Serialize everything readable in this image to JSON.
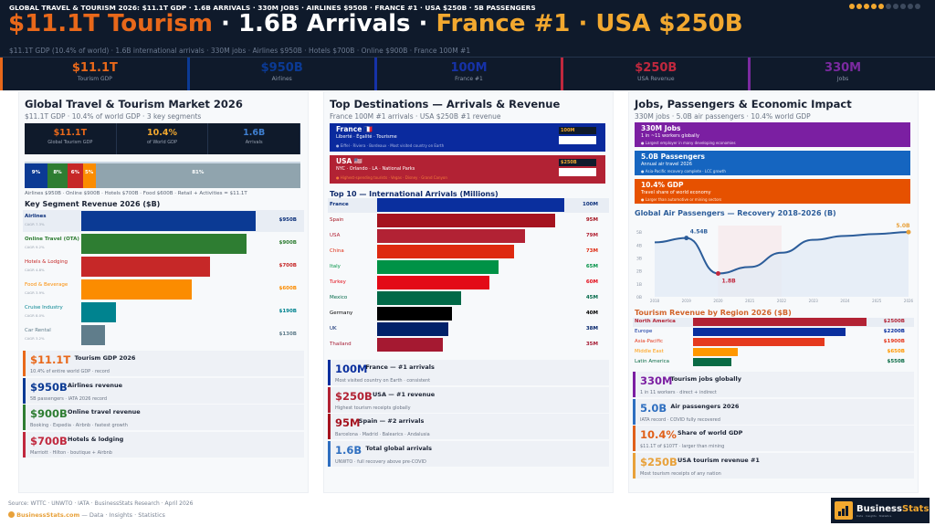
{
  "header": {
    "ticker": "GLOBAL TRAVEL & TOURISM 2026: $11.1T GDP · 1.6B ARRIVALS · 330M JOBS · AIRLINES $950B · FRANCE #1 · USA $250B · 5B PASSENGERS",
    "headline_1": "$11.1T Tourism",
    "headline_2": " · 1.6B Arrivals · ",
    "headline_3": "France #1 · USA $250B",
    "subtitle": "$11.1T GDP (10.4% of world) · 1.6B international arrivals · 330M jobs · Airlines $950B · Hotels $700B · Online $900B · France 100M #1",
    "page_dots": {
      "total": 10,
      "active": 5
    }
  },
  "kpis": [
    {
      "value": "$11.1T",
      "label": "Tourism GDP",
      "color": "#e8681a"
    },
    {
      "value": "$950B",
      "label": "Airlines",
      "color": "#0b3a94"
    },
    {
      "value": "100M",
      "label": "France #1",
      "color": "#1632a8"
    },
    {
      "value": "$250B",
      "label": "USA Revenue",
      "color": "#c0283e"
    },
    {
      "value": "330M",
      "label": "Jobs",
      "color": "#7b2aa0"
    }
  ],
  "left": {
    "title": "Global Travel & Tourism Market 2026",
    "subtitle": "$11.1T GDP · 10.4% of world GDP · 3 key segments",
    "stats": [
      {
        "value": "$11.1T",
        "label": "Global Tourism GDP",
        "color": "#e8681a"
      },
      {
        "value": "10.4%",
        "label": "of World GDP",
        "color": "#f2a82f"
      },
      {
        "value": "1.6B",
        "label": "Arrivals",
        "color": "#3f7fd0"
      }
    ],
    "share_bar": [
      {
        "label": "9%",
        "value": 9,
        "color": "#0b3a94"
      },
      {
        "label": "8%",
        "value": 8,
        "color": "#2e7d32"
      },
      {
        "label": "6%",
        "value": 6,
        "color": "#c62828"
      },
      {
        "label": "5%",
        "value": 5,
        "color": "#fb8c00"
      },
      {
        "label": "81%",
        "value": 81,
        "color": "#90a4ae"
      }
    ],
    "share_caption": "Airlines $950B · Online $900B · Hotels $700B · Food $600B · Retail + Activities = $11.1T",
    "segments_title": "Key Segment Revenue 2026 ($B)",
    "segments": [
      {
        "name": "Airlines",
        "cagr": "CAGR 7.3%",
        "value": 950,
        "value_label": "$950B",
        "color": "#0b3a94"
      },
      {
        "name": "Online Travel (OTA)",
        "cagr": "CAGR 9.2%",
        "value": 900,
        "value_label": "$900B",
        "color": "#2e7d32"
      },
      {
        "name": "Hotels & Lodging",
        "cagr": "CAGR 4.8%",
        "value": 700,
        "value_label": "$700B",
        "color": "#c62828"
      },
      {
        "name": "Food & Beverage",
        "cagr": "CAGR 3.9%",
        "value": 600,
        "value_label": "$600B",
        "color": "#fb8c00"
      },
      {
        "name": "Cruise Industry",
        "cagr": "CAGR 8.0%",
        "value": 190,
        "value_label": "$190B",
        "color": "#00838f"
      },
      {
        "name": "Car Rental",
        "cagr": "CAGR 3.2%",
        "value": 130,
        "value_label": "$130B",
        "color": "#607d8b"
      }
    ],
    "cards": [
      {
        "value": "$11.1T",
        "title": "Tourism GDP 2026",
        "sub": "10.4% of entire world GDP · record",
        "color": "#e8681a"
      },
      {
        "value": "$950B",
        "title": "Airlines revenue",
        "sub": "5B passengers · IATA 2026 record",
        "color": "#0b3a94"
      },
      {
        "value": "$900B",
        "title": "Online travel revenue",
        "sub": "Booking · Expedia · Airbnb · fastest growth",
        "color": "#2e7d32"
      },
      {
        "value": "$700B",
        "title": "Hotels & lodging",
        "sub": "Marriott · Hilton · boutique + Airbnb",
        "color": "#c0283e"
      }
    ]
  },
  "middle": {
    "title": "Top Destinations — Arrivals & Revenue",
    "subtitle": "France 100M #1 arrivals · USA $250B #1 revenue",
    "highlights": [
      {
        "name": "France 🇫🇷",
        "tagline": "Liberté · Égalité · Tourisme",
        "bullet": "● Eiffel · Riviera · Bordeaux · Most visited country on Earth",
        "badge": "100M",
        "color": "#0a2a9e",
        "bullet_color": "#c9d2f0"
      },
      {
        "name": "USA 🇺🇸",
        "tagline": "NYC · Orlando · LA · National Parks",
        "bullet": "● Highest-spending tourists · Vegas · Disney · Grand Canyon",
        "badge": "$250B",
        "color": "#b22234",
        "bullet_color": "#ff8a3a"
      }
    ],
    "arrivals_title": "Top 10 — International Arrivals (Millions)",
    "arrivals": [
      {
        "country": "France",
        "value": 100,
        "label": "100M",
        "color": "#0a2f9e"
      },
      {
        "country": "Spain",
        "value": 95,
        "label": "95M",
        "color": "#a5131f"
      },
      {
        "country": "USA",
        "value": 79,
        "label": "79M",
        "color": "#b22234"
      },
      {
        "country": "China",
        "value": 73,
        "label": "73M",
        "color": "#de2910"
      },
      {
        "country": "Italy",
        "value": 65,
        "label": "65M",
        "color": "#009246"
      },
      {
        "country": "Turkey",
        "value": 60,
        "label": "60M",
        "color": "#e30a17"
      },
      {
        "country": "Mexico",
        "value": 45,
        "label": "45M",
        "color": "#006847"
      },
      {
        "country": "Germany",
        "value": 40,
        "label": "40M",
        "color": "#000000"
      },
      {
        "country": "UK",
        "value": 38,
        "label": "38M",
        "color": "#012169"
      },
      {
        "country": "Thailand",
        "value": 35,
        "label": "35M",
        "color": "#a51931"
      }
    ],
    "cards": [
      {
        "value": "100M",
        "title": "France — #1 arrivals",
        "sub": "Most visited country on Earth · consistent",
        "color": "#0a2f9e"
      },
      {
        "value": "$250B",
        "title": "USA — #1 revenue",
        "sub": "Highest tourism receipts globally",
        "color": "#b22234"
      },
      {
        "value": "95M",
        "title": "Spain — #2 arrivals",
        "sub": "Barcelona · Madrid · Balearics · Andalusia",
        "color": "#a5131f"
      },
      {
        "value": "1.6B",
        "title": "Total global arrivals",
        "sub": "UNWTO · full recovery above pre-COVID",
        "color": "#2f6fc0"
      }
    ]
  },
  "right": {
    "title": "Jobs, Passengers & Economic Impact",
    "subtitle": "330M jobs · 5.0B air passengers · 10.4% world GDP",
    "highlights": [
      {
        "name": "330M Jobs",
        "tagline": "1 in ~11 workers globally",
        "bullet": "● Largest employer in many developing economies",
        "color": "#7b1fa2"
      },
      {
        "name": "5.0B Passengers",
        "tagline": "Annual air travel 2026",
        "bullet": "● Asia-Pacific recovery complete · LCC growth",
        "color": "#1565c0"
      },
      {
        "name": "10.4% GDP",
        "tagline": "Travel share of world economy",
        "bullet": "● Larger than automotive or mining sectors",
        "color": "#e65100"
      }
    ],
    "regions_title": "Tourism Revenue by Region 2026 ($B)",
    "regions": [
      {
        "name": "North America",
        "value": 2500,
        "label": "$2500B",
        "color": "#b22234"
      },
      {
        "name": "Europe",
        "value": 2200,
        "label": "$2200B",
        "color": "#0a2f9e"
      },
      {
        "name": "Asia-Pacific",
        "value": 1900,
        "label": "$1900B",
        "color": "#e53a1e"
      },
      {
        "name": "Middle East",
        "value": 650,
        "label": "$650B",
        "color": "#ff9800"
      },
      {
        "name": "Latin America",
        "value": 550,
        "label": "$550B",
        "color": "#0a6b45"
      }
    ],
    "cards": [
      {
        "value": "330M",
        "title": "Tourism jobs globally",
        "sub": "1 in 11 workers · direct + indirect",
        "color": "#7b1fa2"
      },
      {
        "value": "5.0B",
        "title": "Air passengers 2026",
        "sub": "IATA record · COVID fully recovered",
        "color": "#2f6fc0"
      },
      {
        "value": "10.4%",
        "title": "Share of world GDP",
        "sub": "$11.1T of $107T · larger than mining",
        "color": "#e0601a"
      },
      {
        "value": "$250B",
        "title": "USA tourism revenue #1",
        "sub": "Most tourism receipts of any nation",
        "color": "#e8a13a"
      }
    ]
  },
  "chart_data": {
    "type": "line",
    "title": "Global Air Passengers — Recovery 2018-2026 (B)",
    "x": [
      "2018",
      "2019",
      "2020",
      "2021",
      "2022",
      "2023",
      "2024",
      "2025",
      "2026"
    ],
    "series": [
      {
        "values": [
          4.2,
          4.54,
          1.8,
          2.3,
          3.4,
          4.4,
          4.7,
          4.85,
          5.0
        ]
      }
    ],
    "yticks": [
      "0B",
      "1B",
      "2B",
      "3B",
      "4B",
      "5B"
    ],
    "ylim": [
      0,
      5.5
    ],
    "annotations": [
      {
        "x": "2019",
        "label": "4.54B",
        "color": "#2c5d9a"
      },
      {
        "x": "2020",
        "label": "1.8B",
        "color": "#c0283e"
      },
      {
        "x": "2026",
        "label": "5.0B",
        "color": "#e8a13a"
      }
    ],
    "shaded_range": [
      "2020",
      "2022"
    ],
    "line_color": "#2c5d9a",
    "grid": false
  },
  "footer": {
    "source": "Source: WTTC · UNWTO · IATA · BusinessStats Research · April 2026",
    "site": "BusinessStats.com",
    "tagline": " — Data · Insights · Statistics",
    "logo_a": "Business",
    "logo_b": "Stats",
    "logo_tag": "Data · Insights · Statistics"
  }
}
